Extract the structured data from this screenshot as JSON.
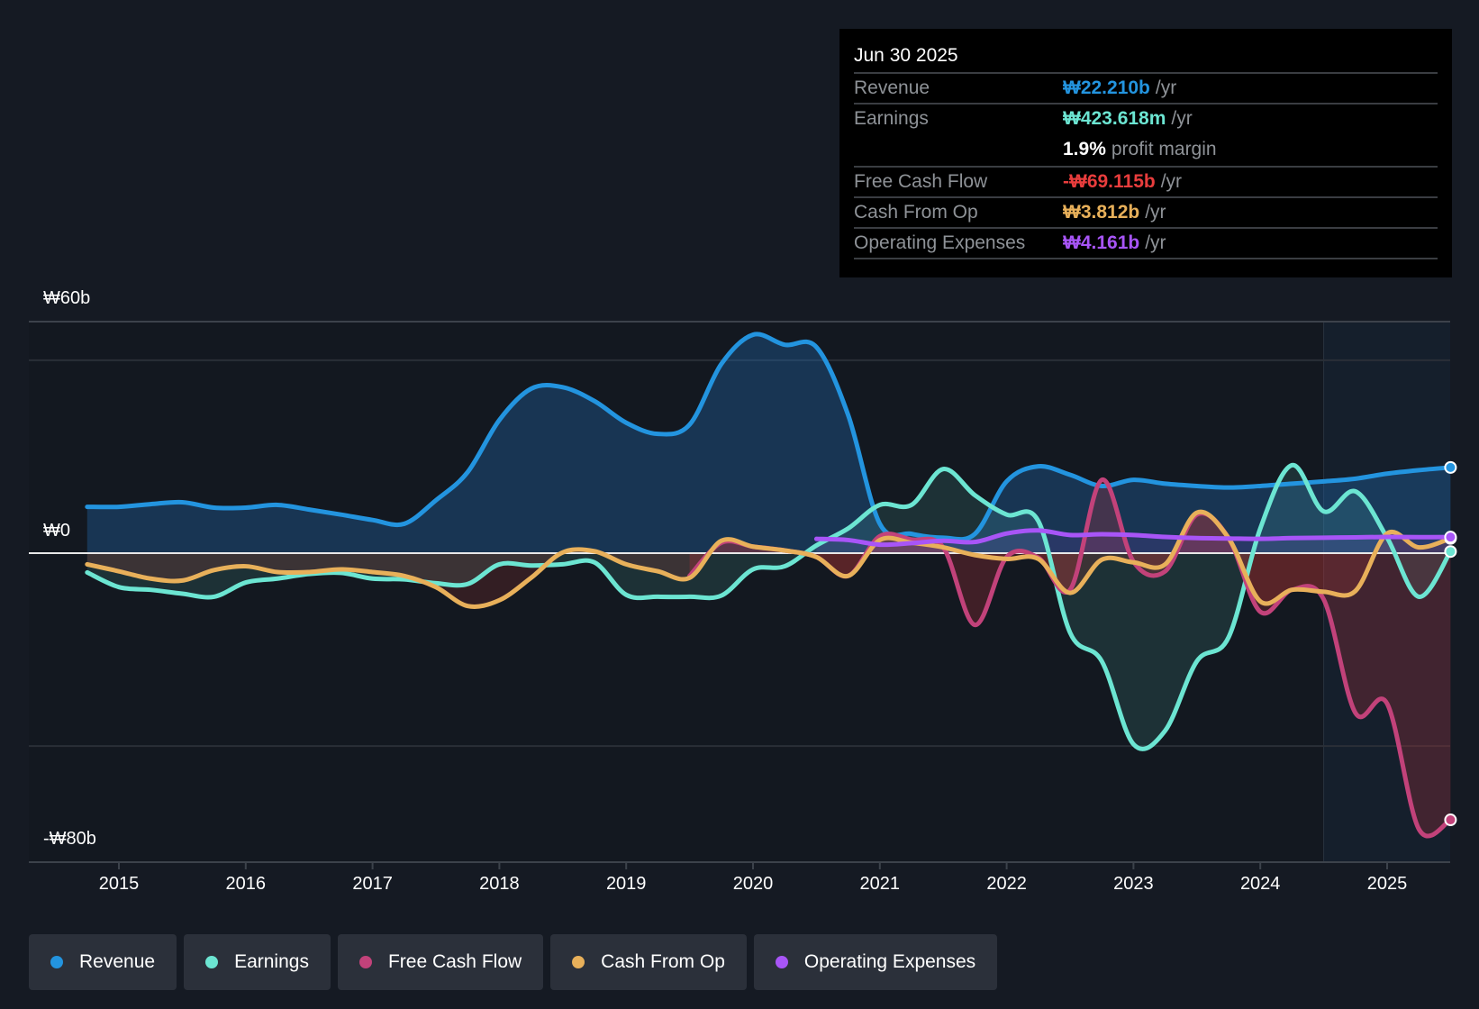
{
  "tooltip": {
    "date": "Jun 30 2025",
    "rows": [
      {
        "label": "Revenue",
        "value": "₩22.210b",
        "unit": "/yr",
        "color": "#2394df"
      },
      {
        "label": "Earnings",
        "value": "₩423.618m",
        "unit": "/yr",
        "color": "#6ce5d2"
      },
      {
        "label": "",
        "value": "1.9%",
        "unit": "profit margin",
        "color": "#ffffff"
      },
      {
        "label": "Free Cash Flow",
        "value": "-₩69.115b",
        "unit": "/yr",
        "color": "#e93d3d"
      },
      {
        "label": "Cash From Op",
        "value": "₩3.812b",
        "unit": "/yr",
        "color": "#e8b05a"
      },
      {
        "label": "Operating Expenses",
        "value": "₩4.161b",
        "unit": "/yr",
        "color": "#a855f7"
      }
    ]
  },
  "chart_data": {
    "type": "line",
    "title": "",
    "xlabel": "",
    "ylabel": "",
    "ylim": [
      -80,
      60
    ],
    "ytick_labels": [
      "₩60b",
      "₩0",
      "-₩80b"
    ],
    "yticks": [
      60,
      0,
      -80
    ],
    "xlim": [
      2014.75,
      2025.5
    ],
    "xtick_labels": [
      "2015",
      "2016",
      "2017",
      "2018",
      "2019",
      "2020",
      "2021",
      "2022",
      "2023",
      "2024",
      "2025"
    ],
    "forecast_start": 2024.5,
    "legend_position": "bottom",
    "series": [
      {
        "name": "Revenue",
        "color": "#2394df",
        "x": [
          2014.75,
          2015,
          2015.25,
          2015.5,
          2015.75,
          2016,
          2016.25,
          2016.5,
          2016.75,
          2017,
          2017.25,
          2017.5,
          2017.75,
          2018,
          2018.25,
          2018.5,
          2018.75,
          2019,
          2019.25,
          2019.5,
          2019.75,
          2020,
          2020.25,
          2020.5,
          2020.75,
          2021,
          2021.25,
          2021.5,
          2021.75,
          2022,
          2022.25,
          2022.5,
          2022.75,
          2023,
          2023.25,
          2023.5,
          2023.75,
          2024,
          2024.25,
          2024.5,
          2024.75,
          2025,
          2025.25,
          2025.5
        ],
        "values": [
          12,
          12,
          12.7,
          13.2,
          11.8,
          11.8,
          12.5,
          11.3,
          10,
          8.6,
          7.6,
          13.7,
          21,
          34.5,
          42.6,
          43,
          39.4,
          33.8,
          30.9,
          33.3,
          49,
          56.6,
          54,
          53.4,
          35.8,
          7.6,
          5,
          4,
          5,
          18.6,
          22.5,
          20.3,
          17.4,
          19,
          18,
          17.4,
          17,
          17.4,
          18,
          18.6,
          19.3,
          20.6,
          21.5,
          22.21
        ]
      },
      {
        "name": "Earnings",
        "color": "#6ce5d2",
        "x": [
          2014.75,
          2015,
          2015.25,
          2015.5,
          2015.75,
          2016,
          2016.25,
          2016.5,
          2016.75,
          2017,
          2017.25,
          2017.5,
          2017.75,
          2018,
          2018.25,
          2018.5,
          2018.75,
          2019,
          2019.25,
          2019.5,
          2019.75,
          2020,
          2020.25,
          2020.5,
          2020.75,
          2021,
          2021.25,
          2021.5,
          2021.75,
          2022,
          2022.25,
          2022.5,
          2022.75,
          2023,
          2023.25,
          2023.5,
          2023.75,
          2024,
          2024.25,
          2024.5,
          2024.75,
          2025,
          2025.25,
          2025.5
        ],
        "values": [
          -5,
          -8.8,
          -9.5,
          -10.5,
          -11.3,
          -7.6,
          -6.6,
          -5.4,
          -5.1,
          -6.6,
          -6.8,
          -7.8,
          -8,
          -2.9,
          -3.2,
          -2.9,
          -2.4,
          -10.8,
          -11.3,
          -11.3,
          -11,
          -4.2,
          -3.4,
          2,
          6.4,
          12.5,
          12.5,
          21.8,
          15,
          10,
          8.3,
          -20.6,
          -28,
          -49.5,
          -46,
          -28,
          -21.8,
          6.4,
          22.8,
          10.8,
          16,
          4,
          -11.3,
          0.42
        ]
      },
      {
        "name": "Free Cash Flow",
        "color": "#c2427a",
        "x": [
          2019.5,
          2019.75,
          2020,
          2020.25,
          2020.5,
          2020.75,
          2021,
          2021.25,
          2021.5,
          2021.75,
          2022,
          2022.25,
          2022.5,
          2022.75,
          2023,
          2023.25,
          2023.5,
          2023.75,
          2024,
          2024.25,
          2024.5,
          2024.75,
          2025,
          2025.25,
          2025.5
        ],
        "values": [
          -5.9,
          2.7,
          1.7,
          0.7,
          -1,
          -5.9,
          4.4,
          3.5,
          1.5,
          -18.6,
          -1,
          -1.2,
          -9.5,
          19,
          -2.2,
          -4.7,
          10,
          3.9,
          -15.2,
          -9.5,
          -12,
          -41.4,
          -39,
          -71.5,
          -69.115
        ]
      },
      {
        "name": "Cash From Op",
        "color": "#e8b05a",
        "x": [
          2014.75,
          2015,
          2015.25,
          2015.5,
          2015.75,
          2016,
          2016.25,
          2016.5,
          2016.75,
          2017,
          2017.25,
          2017.5,
          2017.75,
          2018,
          2018.25,
          2018.5,
          2018.75,
          2019,
          2019.25,
          2019.5,
          2019.75,
          2020,
          2020.25,
          2020.5,
          2020.75,
          2021,
          2021.25,
          2021.5,
          2021.75,
          2022,
          2022.25,
          2022.5,
          2022.75,
          2023,
          2023.25,
          2023.5,
          2023.75,
          2024,
          2024.25,
          2024.5,
          2024.75,
          2025,
          2025.25,
          2025.5
        ],
        "values": [
          -2.9,
          -4.7,
          -6.6,
          -7.1,
          -4.4,
          -3.4,
          -4.9,
          -4.9,
          -4.2,
          -4.9,
          -5.9,
          -8.8,
          -13.7,
          -12.2,
          -6.4,
          0.2,
          0.5,
          -2.9,
          -4.7,
          -6.4,
          3.2,
          1.7,
          0.7,
          -1,
          -5.9,
          3.4,
          2.7,
          1.5,
          -0.5,
          -1.5,
          -1.5,
          -10.3,
          -1.7,
          -2.4,
          -2.9,
          10.5,
          3.9,
          -12.5,
          -9.5,
          -10,
          -9.8,
          5.1,
          1.5,
          3.812
        ]
      },
      {
        "name": "Operating Expenses",
        "color": "#a855f7",
        "x": [
          2020.5,
          2020.75,
          2021,
          2021.25,
          2021.5,
          2021.75,
          2022,
          2022.25,
          2022.5,
          2022.75,
          2023,
          2023.25,
          2023.5,
          2023.75,
          2024,
          2024.25,
          2024.5,
          2024.75,
          2025,
          2025.25,
          2025.5
        ],
        "values": [
          3.7,
          3.4,
          2.2,
          2.6,
          3.2,
          2.9,
          5.1,
          5.9,
          4.7,
          4.9,
          4.7,
          4.2,
          3.9,
          3.8,
          3.7,
          3.9,
          4,
          4.1,
          4.2,
          4.15,
          4.161
        ]
      }
    ]
  },
  "legend": [
    {
      "label": "Revenue",
      "color": "#2394df"
    },
    {
      "label": "Earnings",
      "color": "#6ce5d2"
    },
    {
      "label": "Free Cash Flow",
      "color": "#c2427a"
    },
    {
      "label": "Cash From Op",
      "color": "#e8b05a"
    },
    {
      "label": "Operating Expenses",
      "color": "#a855f7"
    }
  ]
}
